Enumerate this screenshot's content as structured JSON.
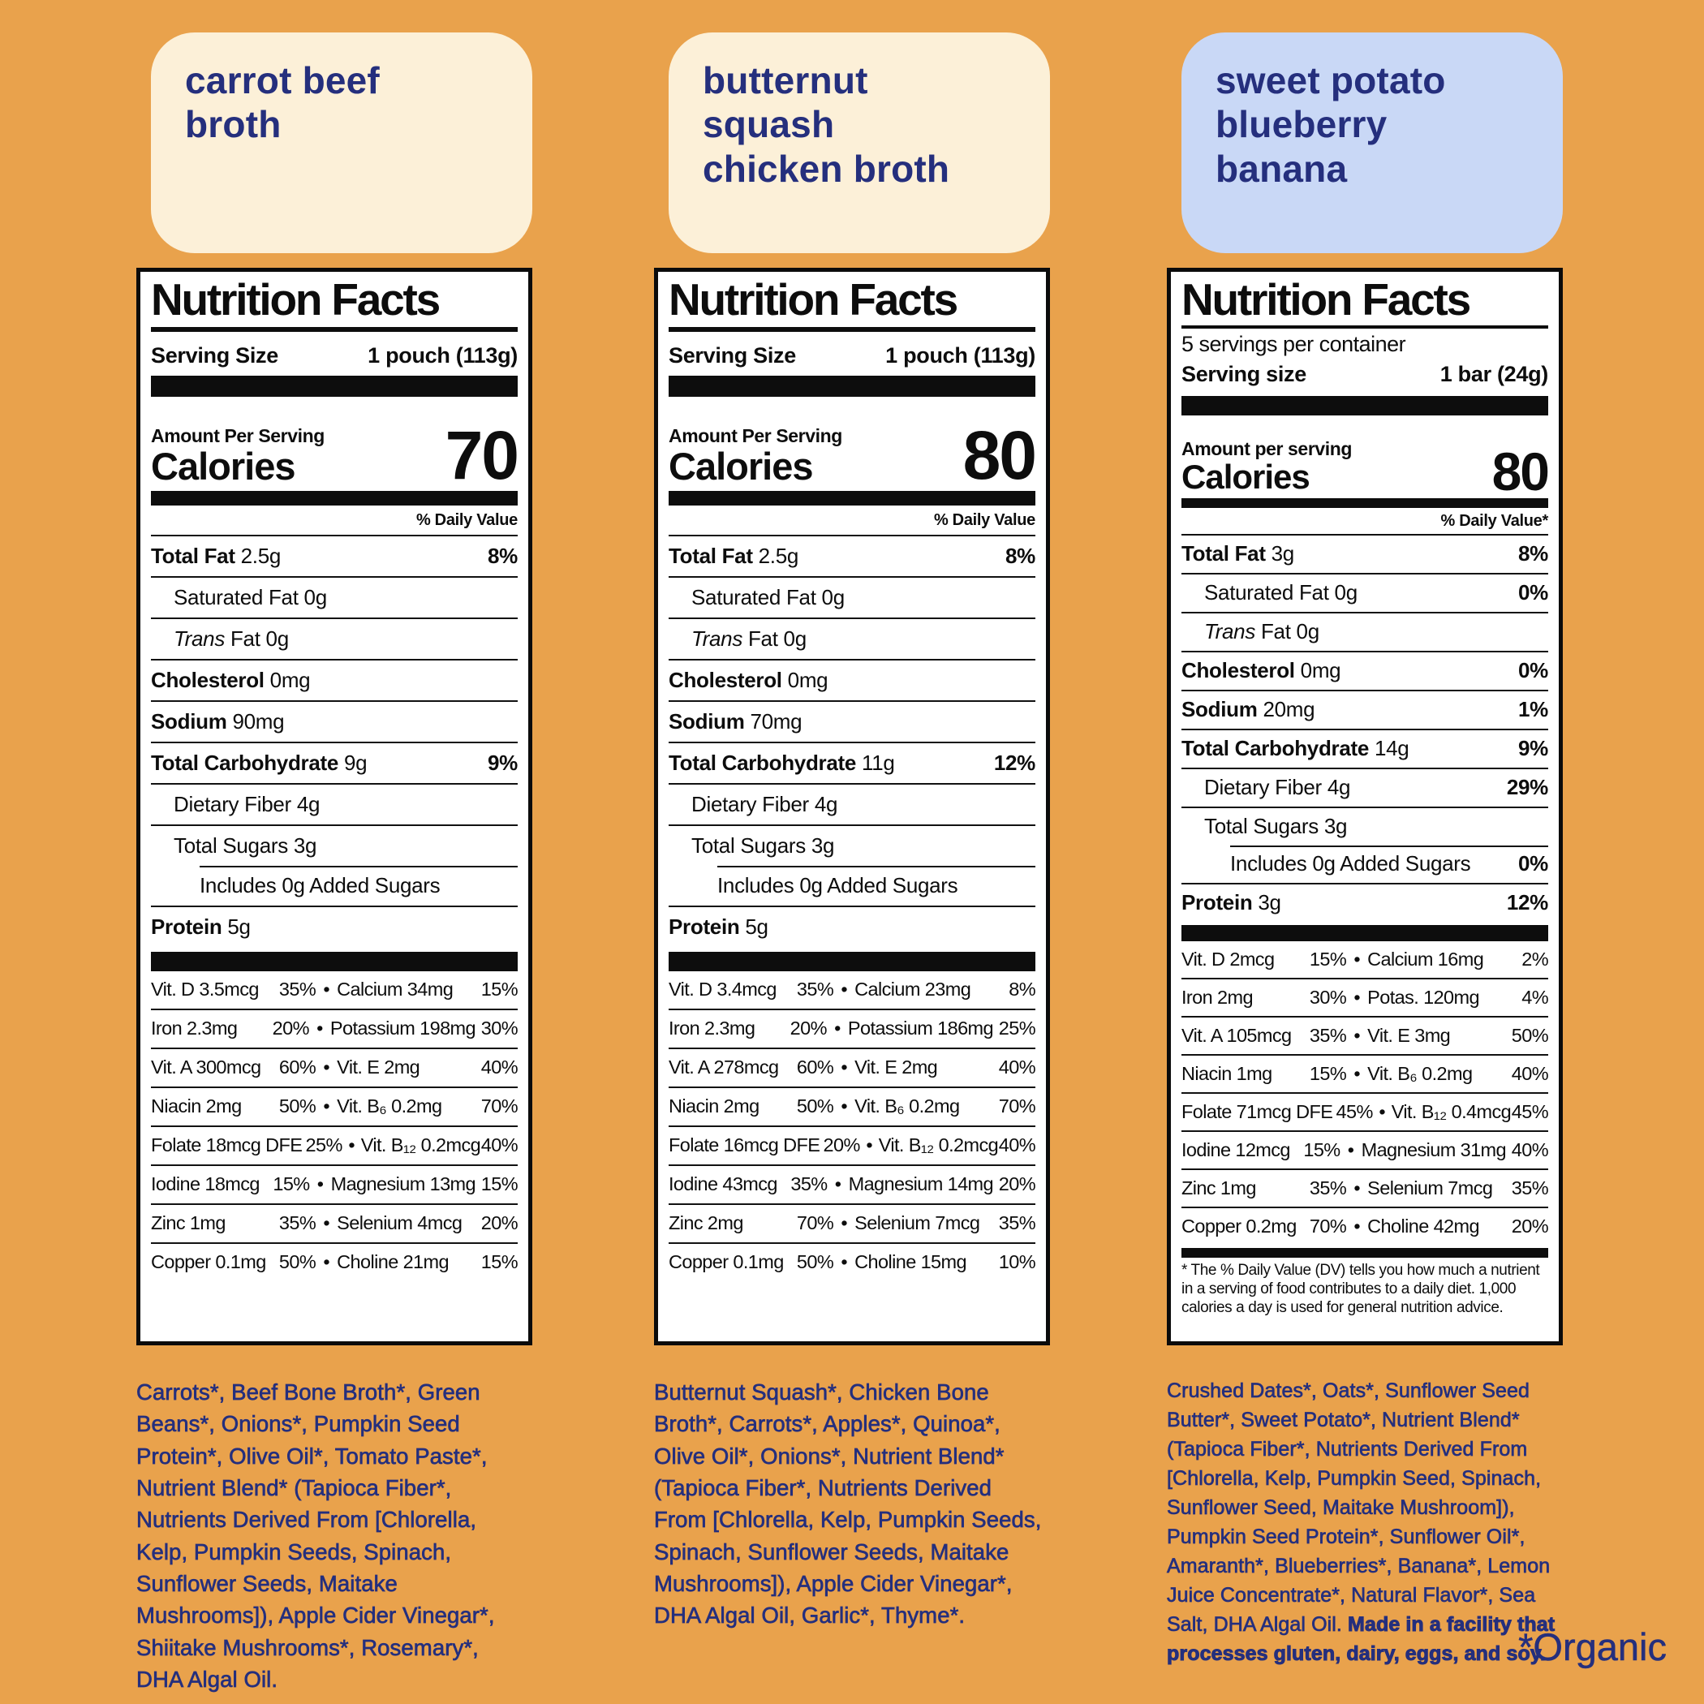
{
  "page": {
    "background": "#E9A24C",
    "navy_text_color": "#252F7D",
    "organic_note": "*Organic"
  },
  "columns": [
    {
      "chip_label": "carrot beef\nbroth",
      "chip_bg": "#FCF0D8",
      "panel": {
        "title": "Nutrition Facts",
        "serving_size_label": "Serving Size",
        "serving_size_value": "1 pouch (113g)",
        "amount_label": "Amount Per Serving",
        "calories_label": "Calories",
        "calories": "70",
        "dv_header": "% Daily Value",
        "rows": [
          {
            "b": "Total Fat",
            "r": "2.5g",
            "dv": "8%",
            "ind": 0
          },
          {
            "r": "Saturated Fat 0g",
            "ind": 1
          },
          {
            "i": "Trans",
            "r": "Fat 0g",
            "ind": 1
          },
          {
            "b": "Cholesterol",
            "r": "0mg",
            "ind": 0
          },
          {
            "b": "Sodium",
            "r": "90mg",
            "ind": 0
          },
          {
            "b": "Total Carbohydrate",
            "r": "9g",
            "dv": "9%",
            "ind": 0
          },
          {
            "r": "Dietary Fiber 4g",
            "ind": 1
          },
          {
            "r": "Total Sugars 3g",
            "ind": 1
          },
          {
            "r": "Includes 0g Added Sugars",
            "ind": 2,
            "inset": true
          },
          {
            "b": "Protein",
            "r": "5g",
            "ind": 0
          }
        ],
        "vitamins": [
          [
            "Vit. D 3.5mcg",
            "35%",
            "Calcium 34mg",
            "15%"
          ],
          [
            "Iron 2.3mg",
            "20%",
            "Potassium 198mg",
            "30%"
          ],
          [
            "Vit. A 300mcg",
            "60%",
            "Vit. E 2mg",
            "40%"
          ],
          [
            "Niacin 2mg",
            "50%",
            "Vit. B₆ 0.2mg",
            "70%"
          ],
          [
            "Folate 18mcg DFE",
            "25%",
            "Vit. B₁₂ 0.2mcg",
            "40%"
          ],
          [
            "Iodine 18mcg",
            "15%",
            "Magnesium 13mg",
            "15%"
          ],
          [
            "Zinc 1mg",
            "35%",
            "Selenium 4mcg",
            "20%"
          ],
          [
            "Copper 0.1mg",
            "50%",
            "Choline 21mg",
            "15%"
          ]
        ]
      },
      "ingredients": "Carrots*, Beef Bone Broth*, Green Beans*, Onions*, Pumpkin Seed Protein*, Olive Oil*, Tomato Paste*, Nutrient Blend* (Tapioca Fiber*, Nutrients Derived From [Chlorella, Kelp, Pumpkin Seeds, Spinach, Sunflower Seeds, Maitake Mushrooms]), Apple Cider Vinegar*, Shiitake Mushrooms*, Rosemary*, DHA Algal Oil."
    },
    {
      "chip_label": "butternut\nsquash\nchicken broth",
      "chip_bg": "#FCF0D8",
      "panel": {
        "title": "Nutrition Facts",
        "serving_size_label": "Serving Size",
        "serving_size_value": "1 pouch (113g)",
        "amount_label": "Amount Per Serving",
        "calories_label": "Calories",
        "calories": "80",
        "dv_header": "% Daily Value",
        "rows": [
          {
            "b": "Total Fat",
            "r": "2.5g",
            "dv": "8%",
            "ind": 0
          },
          {
            "r": "Saturated Fat 0g",
            "ind": 1
          },
          {
            "i": "Trans",
            "r": "Fat 0g",
            "ind": 1
          },
          {
            "b": "Cholesterol",
            "r": "0mg",
            "ind": 0
          },
          {
            "b": "Sodium",
            "r": "70mg",
            "ind": 0
          },
          {
            "b": "Total Carbohydrate",
            "r": "11g",
            "dv": "12%",
            "ind": 0
          },
          {
            "r": "Dietary Fiber 4g",
            "ind": 1
          },
          {
            "r": "Total Sugars 3g",
            "ind": 1
          },
          {
            "r": "Includes 0g Added Sugars",
            "ind": 2,
            "inset": true
          },
          {
            "b": "Protein",
            "r": "5g",
            "ind": 0
          }
        ],
        "vitamins": [
          [
            "Vit. D 3.4mcg",
            "35%",
            "Calcium 23mg",
            "8%"
          ],
          [
            "Iron 2.3mg",
            "20%",
            "Potassium 186mg",
            "25%"
          ],
          [
            "Vit. A 278mcg",
            "60%",
            "Vit. E 2mg",
            "40%"
          ],
          [
            "Niacin 2mg",
            "50%",
            "Vit. B₆ 0.2mg",
            "70%"
          ],
          [
            "Folate 16mcg DFE",
            "20%",
            "Vit. B₁₂ 0.2mcg",
            "40%"
          ],
          [
            "Iodine 43mcg",
            "35%",
            "Magnesium 14mg",
            "20%"
          ],
          [
            "Zinc 2mg",
            "70%",
            "Selenium 7mcg",
            "35%"
          ],
          [
            "Copper 0.1mg",
            "50%",
            "Choline 15mg",
            "10%"
          ]
        ]
      },
      "ingredients": "Butternut Squash*, Chicken Bone Broth*, Carrots*, Apples*, Quinoa*, Olive Oil*, Onions*, Nutrient Blend* (Tapioca Fiber*, Nutrients Derived From [Chlorella, Kelp, Pumpkin Seeds, Spinach, Sunflower Seeds, Maitake Mushrooms]), Apple Cider Vinegar*, DHA Algal Oil, Garlic*, Thyme*."
    },
    {
      "chip_label": "sweet potato\nblueberry\nbanana",
      "chip_bg": "#C9D8F6",
      "panel": {
        "title": "Nutrition Facts",
        "servings_per_container": "5 servings per container",
        "serving_size_label": "Serving size",
        "serving_size_value": "1 bar (24g)",
        "amount_label": "Amount per serving",
        "calories_label": "Calories",
        "calories": "80",
        "dv_header": "% Daily Value*",
        "rows": [
          {
            "b": "Total Fat",
            "r": "3g",
            "dv": "8%",
            "ind": 0
          },
          {
            "r": "Saturated Fat 0g",
            "dv": "0%",
            "ind": 1
          },
          {
            "i": "Trans",
            "r": "Fat 0g",
            "ind": 1
          },
          {
            "b": "Cholesterol",
            "r": "0mg",
            "dv": "0%",
            "ind": 0
          },
          {
            "b": "Sodium",
            "r": "20mg",
            "dv": "1%",
            "ind": 0
          },
          {
            "b": "Total Carbohydrate",
            "r": "14g",
            "dv": "9%",
            "ind": 0
          },
          {
            "r": "Dietary Fiber 4g",
            "dv": "29%",
            "ind": 1
          },
          {
            "r": "Total Sugars 3g",
            "ind": 1
          },
          {
            "r": "Includes 0g Added Sugars",
            "dv": "0%",
            "ind": 2,
            "inset": true
          },
          {
            "b": "Protein",
            "r": "3g",
            "dv": "12%",
            "ind": 0
          }
        ],
        "vitamins": [
          [
            "Vit. D 2mcg",
            "15%",
            "Calcium 16mg",
            "2%"
          ],
          [
            "Iron 2mg",
            "30%",
            "Potas. 120mg",
            "4%"
          ],
          [
            "Vit. A 105mcg",
            "35%",
            "Vit. E 3mg",
            "50%"
          ],
          [
            "Niacin 1mg",
            "15%",
            "Vit. B₆ 0.2mg",
            "40%"
          ],
          [
            "Folate 71mcg DFE",
            "45%",
            "Vit. B₁₂ 0.4mcg",
            "45%"
          ],
          [
            "Iodine 12mcg",
            "15%",
            "Magnesium 31mg",
            "40%"
          ],
          [
            "Zinc 1mg",
            "35%",
            "Selenium 7mcg",
            "35%"
          ],
          [
            "Copper 0.2mg",
            "70%",
            "Choline 42mg",
            "20%"
          ]
        ],
        "footnote": "* The % Daily Value (DV) tells you how much a nutrient in a serving of food contributes to a daily diet. 1,000 calories a day is used for general nutrition advice."
      },
      "ingredients": "Crushed Dates*, Oats*, Sunflower Seed Butter*, Sweet Potato*, Nutrient Blend* (Tapioca Fiber*, Nutrients Derived From [Chlorella, Kelp, Pumpkin Seed, Spinach, Sunflower Seed, Maitake Mushroom]), Pumpkin Seed Protein*, Sunflower Oil*, Amaranth*, Blueberries*, Banana*, Lemon Juice Concentrate*, Natural Flavor*, Sea Salt, DHA Algal Oil. ",
      "allergen_note": "Made in a facility that processes gluten, dairy, eggs, and soy."
    }
  ]
}
